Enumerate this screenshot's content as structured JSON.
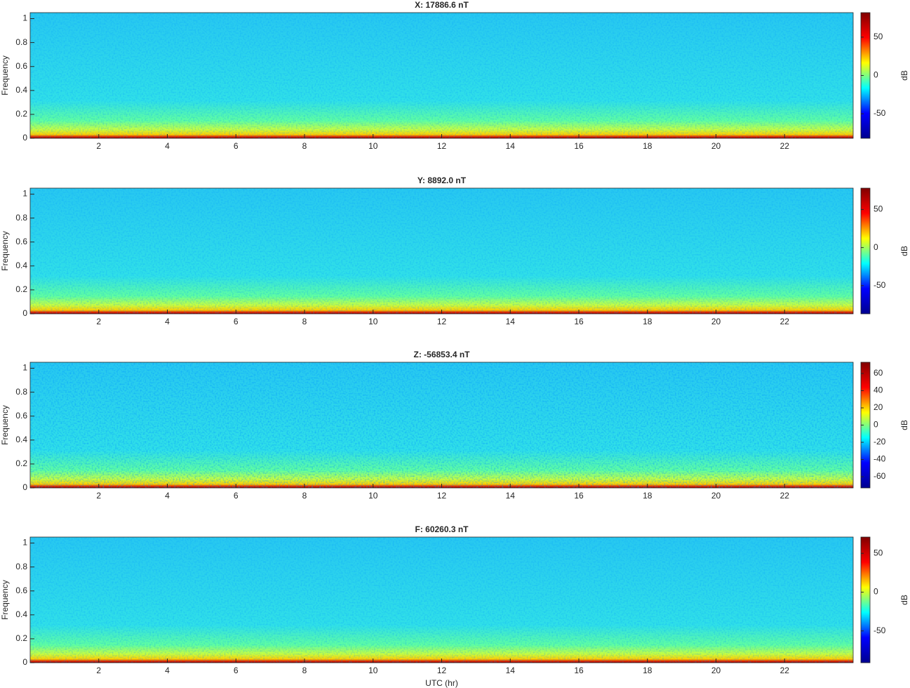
{
  "chart_data": [
    {
      "type": "spectrogram",
      "title": "X: 17886.6 nT",
      "y_label": "Frequency",
      "xlim": [
        0,
        24
      ],
      "xticks": [
        2,
        4,
        6,
        8,
        10,
        12,
        14,
        16,
        18,
        20,
        22
      ],
      "ylim": [
        0,
        1.05
      ],
      "yticks": [
        0,
        0.2,
        0.4,
        0.6,
        0.8,
        1
      ],
      "colormap": "jet",
      "colorbar_label": "dB",
      "clim": [
        -82,
        82
      ],
      "cticks": [
        -50,
        0,
        50
      ]
    },
    {
      "type": "spectrogram",
      "title": "Y: 8892.0 nT",
      "y_label": "Frequency",
      "xlim": [
        0,
        24
      ],
      "xticks": [
        2,
        4,
        6,
        8,
        10,
        12,
        14,
        16,
        18,
        20,
        22
      ],
      "ylim": [
        0,
        1.05
      ],
      "yticks": [
        0,
        0.2,
        0.4,
        0.6,
        0.8,
        1
      ],
      "colormap": "jet",
      "colorbar_label": "dB",
      "clim": [
        -87,
        78
      ],
      "cticks": [
        -50,
        0,
        50
      ]
    },
    {
      "type": "spectrogram",
      "title": "Z: -56853.4 nT",
      "y_label": "Frequency",
      "xlim": [
        0,
        24
      ],
      "xticks": [
        2,
        4,
        6,
        8,
        10,
        12,
        14,
        16,
        18,
        20,
        22
      ],
      "ylim": [
        0,
        1.05
      ],
      "yticks": [
        0,
        0.2,
        0.4,
        0.6,
        0.8,
        1
      ],
      "colormap": "jet",
      "colorbar_label": "dB",
      "clim": [
        -73,
        73
      ],
      "cticks": [
        -60,
        -40,
        -20,
        0,
        20,
        40,
        60
      ]
    },
    {
      "type": "spectrogram",
      "title": "F: 60260.3 nT",
      "y_label": "Frequency",
      "x_label": "UTC (hr)",
      "xlim": [
        0,
        24
      ],
      "xticks": [
        2,
        4,
        6,
        8,
        10,
        12,
        14,
        16,
        18,
        20,
        22
      ],
      "ylim": [
        0,
        1.05
      ],
      "yticks": [
        0,
        0.2,
        0.4,
        0.6,
        0.8,
        1
      ],
      "colormap": "jet",
      "colorbar_label": "dB",
      "clim": [
        -91,
        71
      ],
      "cticks": [
        -50,
        0,
        50
      ]
    }
  ]
}
